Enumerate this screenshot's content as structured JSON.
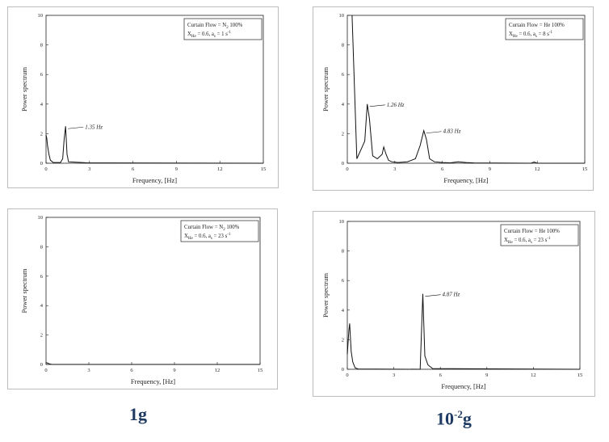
{
  "captions": {
    "left": "1g",
    "right": "10",
    "right_exp": "-2",
    "right_suffix": "g"
  },
  "chart_data": [
    {
      "type": "line",
      "xlabel": "Frequency, [Hz]",
      "ylabel": "Power spectrum",
      "xlim": [
        0,
        15
      ],
      "ylim": [
        0,
        10
      ],
      "xticks": [
        0,
        3,
        6,
        9,
        12,
        15
      ],
      "yticks": [
        0,
        2,
        4,
        6,
        8,
        10
      ],
      "legend": {
        "line1": "Curtain Flow = N",
        "line1_sub": "2",
        "line1_tail": " 100%",
        "line2": "X",
        "line2_sub": "He",
        "line2_mid": " = 0.6,  a",
        "line2_sub2": "s",
        "line2_tail": " = 1 s",
        "line2_sup": "-1"
      },
      "series": [
        {
          "x": [
            0,
            0.05,
            0.1,
            0.2,
            0.3,
            0.5,
            1.0,
            1.15,
            1.25,
            1.35,
            1.45,
            1.55,
            1.8,
            2.2,
            2.6,
            2.9,
            15
          ],
          "y": [
            1.9,
            1.7,
            1.2,
            0.6,
            0.2,
            0.05,
            0.05,
            0.3,
            1.6,
            2.5,
            0.6,
            0.1,
            0.08,
            0.06,
            0.04,
            0.02,
            0.0
          ]
        }
      ],
      "annotations": [
        {
          "text": "1.35 Hz",
          "x": 1.35,
          "y": 2.5
        }
      ]
    },
    {
      "type": "line",
      "xlabel": "Frequency, [Hz]",
      "ylabel": "Power spectrum",
      "xlim": [
        0,
        15
      ],
      "ylim": [
        0,
        10
      ],
      "xticks": [
        0,
        3,
        6,
        9,
        12,
        15
      ],
      "yticks": [
        0,
        2,
        4,
        6,
        8,
        10
      ],
      "legend": {
        "line1": "Curtain Flow = He",
        "line1_sub": "",
        "line1_tail": " 100%",
        "line2": "X",
        "line2_sub": "He",
        "line2_mid": " = 0.6,  a",
        "line2_sub2": "s",
        "line2_tail": " = 8 s",
        "line2_sup": "-1"
      },
      "series": [
        {
          "x": [
            0.3,
            0.6,
            0.9,
            1.1,
            1.26,
            1.4,
            1.6,
            1.9,
            2.2,
            2.3,
            2.45,
            2.6,
            2.8,
            3.2,
            3.8,
            4.3,
            4.6,
            4.83,
            5.0,
            5.2,
            5.5,
            6.0,
            6.5,
            7.0,
            7.5,
            8.0,
            11.6,
            11.8,
            12.0,
            15
          ],
          "y": [
            10,
            0.3,
            1.0,
            1.5,
            4.0,
            3.0,
            0.5,
            0.3,
            0.6,
            1.1,
            0.6,
            0.2,
            0.1,
            0.05,
            0.1,
            0.3,
            1.2,
            2.2,
            1.6,
            0.3,
            0.1,
            0.05,
            0.03,
            0.1,
            0.05,
            0.02,
            0.0,
            0.08,
            0.0,
            0.0
          ]
        }
      ],
      "annotations": [
        {
          "text": "1.26 Hz",
          "x": 1.26,
          "y": 4.0
        },
        {
          "text": "4.83 Hz",
          "x": 4.83,
          "y": 2.2
        }
      ]
    },
    {
      "type": "line",
      "xlabel": "Frequency, [Hz]",
      "ylabel": "Power spectrum",
      "xlim": [
        0,
        15
      ],
      "ylim": [
        0,
        10
      ],
      "xticks": [
        0,
        3,
        6,
        9,
        12,
        15
      ],
      "yticks": [
        0,
        2,
        4,
        6,
        8,
        10
      ],
      "legend": {
        "line1": "Curtain Flow = N",
        "line1_sub": "2",
        "line1_tail": " 100%",
        "line2": "X",
        "line2_sub": "He",
        "line2_mid": " = 0.6,  a",
        "line2_sub2": "s",
        "line2_tail": " = 23 s",
        "line2_sup": "-1"
      },
      "series": [
        {
          "x": [
            0,
            0.1,
            0.2,
            0.4,
            15
          ],
          "y": [
            0.12,
            0.1,
            0.05,
            0.0,
            0.0
          ]
        }
      ],
      "annotations": []
    },
    {
      "type": "line",
      "xlabel": "Frequency, [Hz]",
      "ylabel": "Power spectrum",
      "xlim": [
        0,
        15
      ],
      "ylim": [
        0,
        10
      ],
      "xticks": [
        0,
        3,
        6,
        9,
        12,
        15
      ],
      "yticks": [
        0,
        2,
        4,
        6,
        8,
        10
      ],
      "legend": {
        "line1": "Curtain Flow = He",
        "line1_sub": "",
        "line1_tail": " 100%",
        "line2": "X",
        "line2_sub": "He",
        "line2_mid": " = 0.6,  a",
        "line2_sub2": "s",
        "line2_tail": " = 23 s",
        "line2_sup": "-1"
      },
      "series": [
        {
          "x": [
            0,
            0.1,
            0.15,
            0.25,
            0.35,
            0.5,
            0.7,
            4.7,
            4.87,
            5.0,
            5.2,
            5.5,
            15
          ],
          "y": [
            1.0,
            2.6,
            3.1,
            1.2,
            0.5,
            0.1,
            0.02,
            0.0,
            5.1,
            0.9,
            0.3,
            0.05,
            0.0
          ]
        }
      ],
      "annotations": [
        {
          "text": "4.87 Hz",
          "x": 4.87,
          "y": 5.1
        }
      ]
    }
  ]
}
